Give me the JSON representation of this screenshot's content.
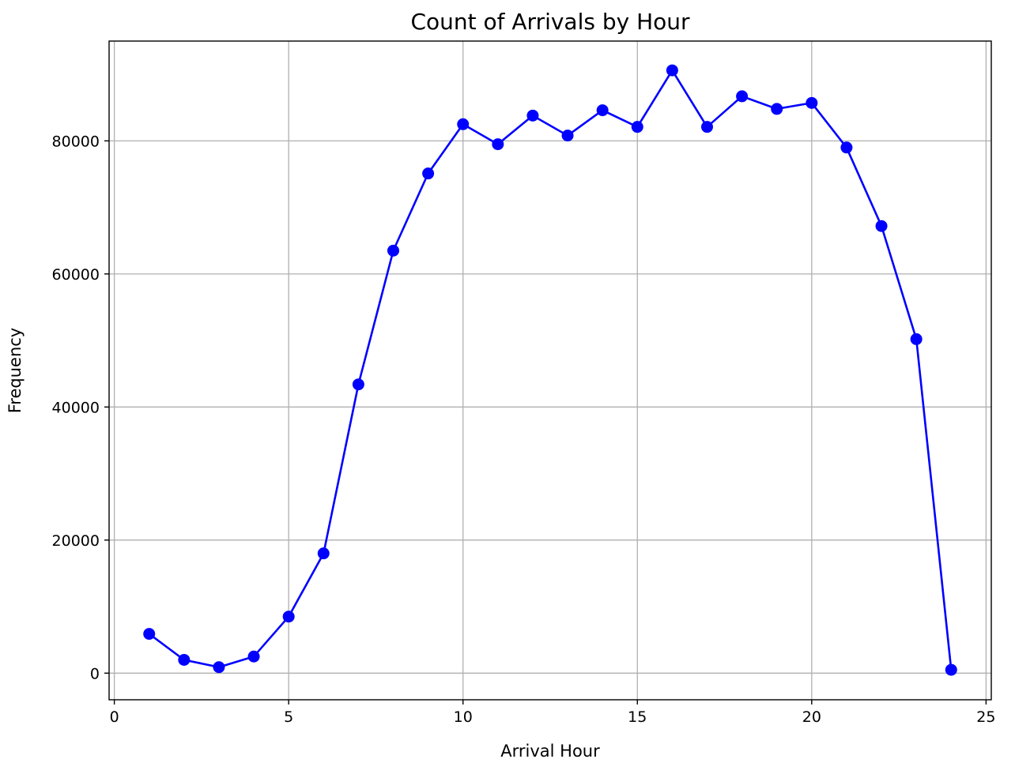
{
  "chart_data": {
    "type": "line",
    "title": "Count of Arrivals by Hour",
    "xlabel": "Arrival Hour",
    "ylabel": "Frequency",
    "xlim": [
      -0.15,
      25.15
    ],
    "ylim": [
      -4000,
      95000
    ],
    "xticks": [
      0,
      5,
      10,
      15,
      20,
      25
    ],
    "yticks": [
      0,
      20000,
      40000,
      60000,
      80000
    ],
    "grid": true,
    "color": "#0000ff",
    "marker": "circle",
    "series": [
      {
        "x": [
          1,
          2,
          3,
          4,
          5,
          6,
          7,
          8,
          9,
          10,
          11,
          12,
          13,
          14,
          15,
          16,
          17,
          18,
          19,
          20,
          21,
          22,
          23,
          24
        ],
        "values": [
          5900,
          2000,
          900,
          2500,
          8500,
          18000,
          43400,
          63500,
          75100,
          82500,
          79500,
          83800,
          80800,
          84600,
          82100,
          90600,
          82100,
          86700,
          84800,
          85700,
          79000,
          67200,
          50200,
          500
        ]
      }
    ]
  }
}
